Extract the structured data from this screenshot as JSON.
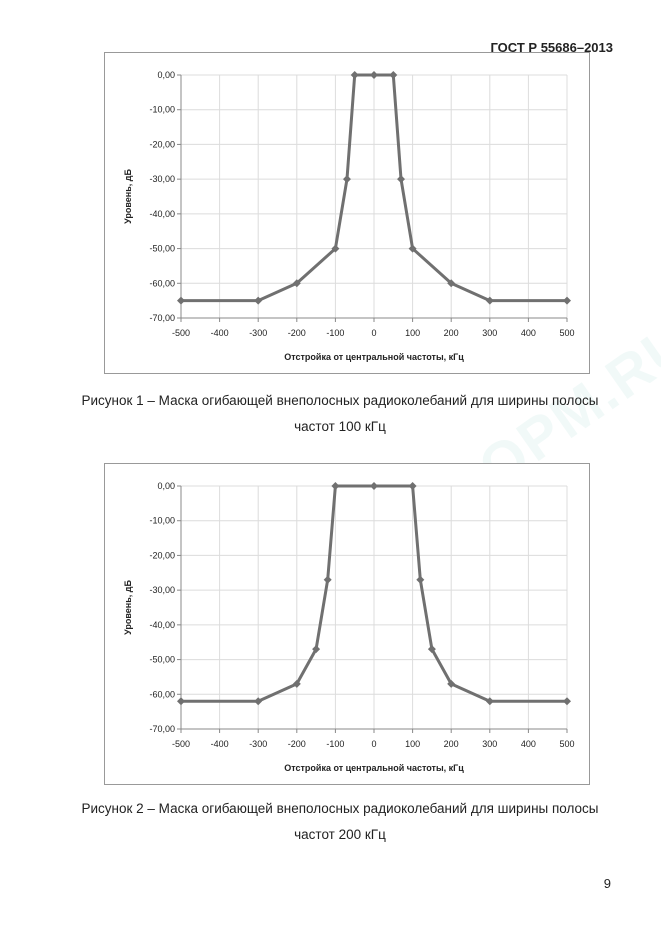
{
  "header": {
    "standard": "ГОСТ Р 55686–2013"
  },
  "watermark": "ГОСТ®ИНФОРМ.RU",
  "page_number": "9",
  "captions": [
    {
      "line1": "Рисунок 1 – Маска огибающей внеполосных радиоколебаний для ширины полосы",
      "line2": "частот 100 кГц"
    },
    {
      "line1": "Рисунок 2 – Маска огибающей внеполосных радиоколебаний для ширины полосы",
      "line2": "частот 200 кГц"
    }
  ],
  "chart_data": [
    {
      "type": "line",
      "title": "",
      "xlabel": "Отстройка от центральной частоты, кГц",
      "ylabel": "Уровень, дБ",
      "xlim": [
        -500,
        500
      ],
      "ylim": [
        -70,
        0
      ],
      "x_ticks": [
        "-500",
        "-400",
        "-300",
        "-200",
        "-100",
        "0",
        "100",
        "200",
        "300",
        "400",
        "500"
      ],
      "y_ticks": [
        "0,00",
        "-10,00",
        "-20,00",
        "-30,00",
        "-40,00",
        "-50,00",
        "-60,00",
        "-70,00"
      ],
      "grid": true,
      "color": "#707070",
      "series": [
        {
          "x": [
            -500,
            -300,
            -200,
            -100,
            -70,
            -50,
            0,
            50,
            70,
            100,
            200,
            300,
            500
          ],
          "y": [
            -65,
            -65,
            -60,
            -50,
            -30,
            0,
            0,
            0,
            -30,
            -50,
            -60,
            -65,
            -65
          ]
        }
      ]
    },
    {
      "type": "line",
      "title": "",
      "xlabel": "Отстройка от центральной частоты, кГц",
      "ylabel": "Уровень, дБ",
      "xlim": [
        -500,
        500
      ],
      "ylim": [
        -70,
        0
      ],
      "x_ticks": [
        "-500",
        "-400",
        "-300",
        "-200",
        "-100",
        "0",
        "100",
        "200",
        "300",
        "400",
        "500"
      ],
      "y_ticks": [
        "0,00",
        "-10,00",
        "-20,00",
        "-30,00",
        "-40,00",
        "-50,00",
        "-60,00",
        "-70,00"
      ],
      "grid": true,
      "color": "#707070",
      "series": [
        {
          "x": [
            -500,
            -300,
            -200,
            -150,
            -120,
            -100,
            0,
            100,
            120,
            150,
            200,
            300,
            500
          ],
          "y": [
            -62,
            -62,
            -57,
            -47,
            -27,
            0,
            0,
            0,
            -27,
            -47,
            -57,
            -62,
            -62
          ]
        }
      ]
    }
  ]
}
